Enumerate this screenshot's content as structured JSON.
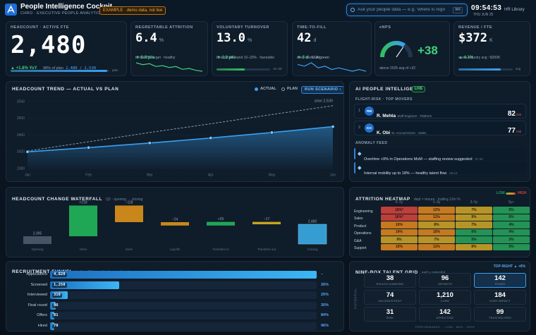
{
  "header": {
    "title": "People Intelligence Cockpit",
    "subtitle": "CHRO · EXECUTIVE PEOPLE ANALYTICS",
    "badge": "EXAMPLE · demo data, not live",
    "search_placeholder": "Ask your people data — e.g. 'where is regretted attrition rising?'",
    "search_shortcut": "⌘K",
    "clock": "09:54:53",
    "date": "THU JUN 25",
    "library_button": "HR Library"
  },
  "kpis": [
    {
      "label": "HEADCOUNT · ACTIVE FTE",
      "value": "2,480",
      "delta": "▲ +1.8% YoY",
      "note": "98% of plan",
      "note_em": "2,480 / 2,530",
      "progress": 98,
      "tail": "plan"
    },
    {
      "label": "REGRETTABLE ATTRITION",
      "value": "6.4",
      "unit": "%",
      "delta": "▼ 0.8 pts",
      "note": "below 8% target · healthy",
      "spark": [
        7.3,
        7.1,
        7.2,
        6.9,
        7.0,
        6.8,
        6.9,
        6.6,
        6.7,
        6.5,
        6.4
      ]
    },
    {
      "label": "VOLUNTARY TURNOVER",
      "value": "13.0",
      "unit": "%",
      "delta": "▼ 1.2 pts",
      "note": "benchmark band 10–20% · favorable",
      "progress": 52,
      "tail": "10–20"
    },
    {
      "label": "TIME-TO-FILL",
      "value": "42",
      "unit": "d",
      "delta": "▼ 3 d",
      "delta_note": "SLA green",
      "note": "exec roles 58d",
      "spark": [
        46,
        45,
        47,
        44,
        45,
        43,
        44,
        43,
        42,
        43,
        42
      ]
    },
    {
      "label": "eNPS",
      "gauge": 38,
      "gauge_range": [
        -100,
        100
      ],
      "value": "+38",
      "note": "above 2025 avg of +32"
    },
    {
      "label": "REVENUE / FTE",
      "value": "$372",
      "unit": "K",
      "delta": "▲ 4.1%",
      "note": "cross-industry avg ~$350K",
      "progress": 78,
      "tail": "avg"
    }
  ],
  "trend": {
    "type": "line",
    "title": "HEADCOUNT TREND — ACTUAL VS PLAN",
    "button": "RUN SCENARIO ›",
    "plan_label": "plan 2,530",
    "x": [
      "Jan",
      "Feb",
      "Mar",
      "Apr",
      "May",
      "Jun"
    ],
    "series": [
      {
        "name": "ACTUAL",
        "color": "#3aa0f0",
        "dashed": false,
        "values": [
          2420,
          2430,
          2441,
          2453,
          2466,
          2480
        ]
      },
      {
        "name": "PLAN",
        "color": "#8a9bb0",
        "dashed": true,
        "values": [
          2422,
          2444,
          2466,
          2487,
          2509,
          2530
        ]
      }
    ],
    "ylim": [
      2380,
      2540
    ],
    "yticks": [
      2380,
      2420,
      2460,
      2500,
      2540
    ],
    "grid": true
  },
  "ai": {
    "title": "AI PEOPLE INTELLIGENCE",
    "badge": "LIVE",
    "section": "FLIGHT-RISK · TOP MOVERS",
    "movers": [
      {
        "rank": 1,
        "initials": "RM",
        "name": "R. Mehta",
        "role": "Staff Engineer · Platform",
        "score": 82,
        "score_unit": "risk"
      },
      {
        "rank": 2,
        "initials": "KO",
        "name": "K. Obi",
        "role": "Sr. Account Exec · Sales",
        "score": 77,
        "score_unit": "risk"
      }
    ],
    "anomaly_title": "ANOMALY FEED",
    "anomalies": [
      {
        "text": "Overtime +9% in Operations MoM — staffing review suggested",
        "time": "07:32"
      },
      {
        "text": "Internal mobility up to 18% — healthy talent flow",
        "time": "06:14"
      }
    ]
  },
  "waterfall": {
    "title": "HEADCOUNT CHANGE WATERFALL",
    "subtitle": "Q2 · opening → closing",
    "categories": [
      "Opening",
      "Hires",
      "Exits",
      "Layoffs",
      "Transfers in",
      "Transfers out",
      "Closing"
    ],
    "values": [
      2395,
      218,
      -118,
      -24,
      26,
      -17,
      2480
    ],
    "value_labels": [
      "2,395",
      "+218",
      "−118",
      "−24",
      "+26",
      "−17",
      "2,480"
    ],
    "colors": [
      "#4a5a6c",
      "#22b35a",
      "#d9901a",
      "#d9901a",
      "#22b35a",
      "#d8b020",
      "#39a8e0"
    ],
    "ylim": [
      2340,
      2640
    ]
  },
  "heatmap": {
    "title": "ATTRITION HEATMAP",
    "subtitle": "dept × tenure · trailing 12m %",
    "legend_low": "LOW",
    "legend_high": "HIGH",
    "columns": [
      "0–1y",
      "1–3y",
      "3–5y",
      "5y+"
    ],
    "rows": [
      "Engineering",
      "Sales",
      "Product",
      "Operations",
      "G&A",
      "Support"
    ],
    "values": [
      [
        18,
        12,
        7,
        5
      ],
      [
        16,
        11,
        9,
        6
      ],
      [
        10,
        8,
        7,
        4
      ],
      [
        14,
        10,
        6,
        4
      ],
      [
        9,
        7,
        5,
        3
      ],
      [
        15,
        11,
        8,
        5
      ]
    ],
    "value_labels": [
      [
        "18%*",
        "12%",
        "7%",
        "5%"
      ],
      [
        "16%*",
        "11%",
        "9%",
        "6%"
      ],
      [
        "10%",
        "8%",
        "7%",
        "4%"
      ],
      [
        "14%",
        "10%",
        "6%",
        "4%"
      ],
      [
        "9%",
        "7%",
        "5%",
        "3%"
      ],
      [
        "15%",
        "11%",
        "8%",
        "5%"
      ]
    ],
    "color_steps": [
      {
        "from": 0,
        "color": "#27a05a"
      },
      {
        "from": 7,
        "color": "#c9a227"
      },
      {
        "from": 10,
        "color": "#d9841f"
      },
      {
        "from": 16,
        "color": "#d0433b"
      }
    ]
  },
  "funnel": {
    "title": "RECRUITMENT FUNNEL",
    "subtitle": "trailing 90d · applications → hired",
    "stages": [
      "Applications",
      "Screened",
      "Interviewed",
      "Final round",
      "Offers",
      "Hired"
    ],
    "values": [
      4820,
      1250,
      316,
      96,
      81,
      78
    ],
    "value_labels": [
      "4,820",
      "1,250",
      "316",
      "96",
      "81",
      "78"
    ],
    "conversion": [
      "–",
      "26%",
      "25%",
      "30%",
      "84%",
      "96%"
    ],
    "xlim": [
      0,
      4820
    ]
  },
  "ninebox": {
    "title": "NINE-BOX TALENT GRID",
    "subtitle": "perf × potential",
    "badge": "TOP-RIGHT ▲ +6%",
    "y_label": "POTENTIAL",
    "x_label": "PERFORMANCE → LOW · MED · HIGH",
    "highlight": 2,
    "cells": [
      {
        "value": "38",
        "label": "ROUGH DIAMOND"
      },
      {
        "value": "96",
        "label": "GROWTH"
      },
      {
        "value": "142",
        "label": "STARS"
      },
      {
        "value": "74",
        "label": "INCONSISTENT"
      },
      {
        "value": "1,210",
        "label": "CORE"
      },
      {
        "value": "184",
        "label": "HIGH IMPACT"
      },
      {
        "value": "31",
        "label": "RISK"
      },
      {
        "value": "142",
        "label": "EFFECTIVE"
      },
      {
        "value": "99",
        "label": "TRUSTED PRO"
      }
    ]
  }
}
